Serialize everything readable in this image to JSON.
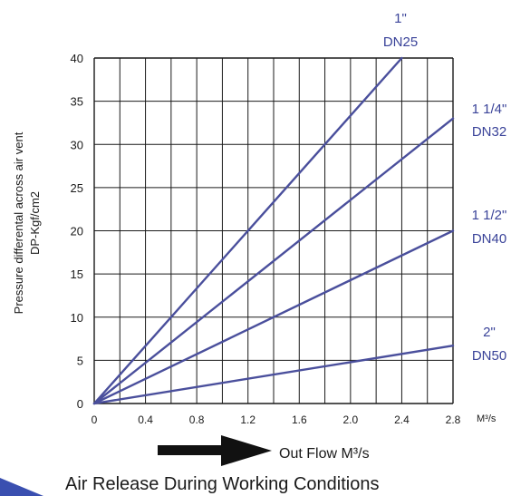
{
  "chart_data": {
    "type": "line",
    "title": "Air Release During Working Conditions",
    "xlabel": "Out Flow M³/s",
    "x_unit": "M³/s",
    "ylabel": [
      "Pressure differental across air vent",
      "DP-Kgf/cm2"
    ],
    "xlim": [
      0,
      2.8
    ],
    "ylim": [
      0,
      40
    ],
    "x_ticks": [
      "0",
      "0.4",
      "0.8",
      "1.2",
      "1.6",
      "2.0",
      "2.4",
      "2.8"
    ],
    "x_tick_values": [
      0,
      0.4,
      0.8,
      1.2,
      1.6,
      2.0,
      2.4,
      2.8
    ],
    "y_ticks": [
      "0",
      "5",
      "10",
      "15",
      "20",
      "25",
      "30",
      "35",
      "40"
    ],
    "y_tick_values": [
      0,
      5,
      10,
      15,
      20,
      25,
      30,
      35,
      40
    ],
    "x_grid_step": 0.2,
    "y_grid_step": 5,
    "grid": true,
    "series": [
      {
        "label_line1": "1\"",
        "label_line2": "DN25",
        "x": [
          0,
          2.4
        ],
        "y": [
          0,
          40
        ]
      },
      {
        "label_line1": "1 1/4\"",
        "label_line2": "DN32",
        "x": [
          0,
          2.8
        ],
        "y": [
          0,
          33
        ]
      },
      {
        "label_line1": "1 1/2\"",
        "label_line2": "DN40",
        "x": [
          0,
          2.8
        ],
        "y": [
          0,
          20
        ]
      },
      {
        "label_line1": "2\"",
        "label_line2": "DN50",
        "x": [
          0,
          2.8
        ],
        "y": [
          0,
          6.7
        ]
      }
    ],
    "colors": {
      "line": "#4a4f9c",
      "label": "#3a4399",
      "grid": "#1a1a1a",
      "text": "#1a1a1a",
      "arrow": "#111111",
      "accent": "#3a4fb0"
    }
  }
}
